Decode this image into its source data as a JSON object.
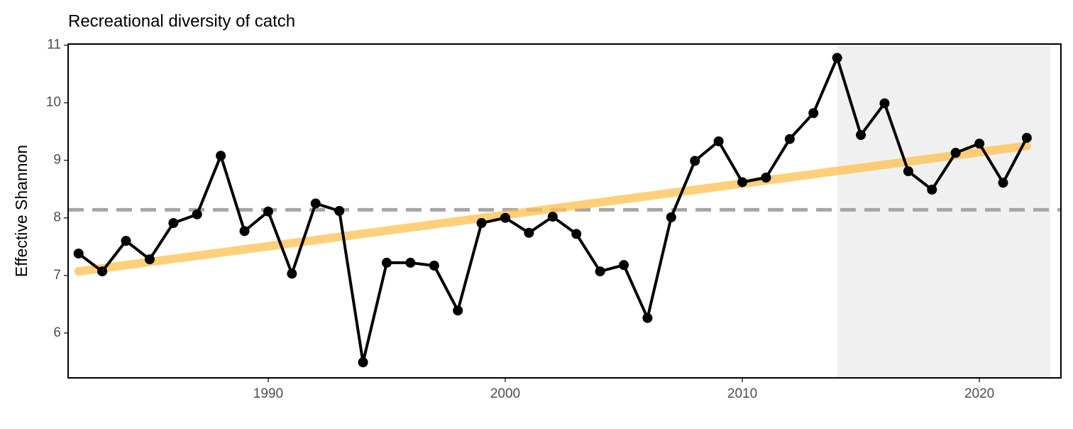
{
  "chart_data": {
    "type": "line",
    "title": "Recreational diversity of catch",
    "ylabel": "Effective Shannon",
    "x": [
      1982,
      1983,
      1984,
      1985,
      1986,
      1987,
      1988,
      1989,
      1990,
      1991,
      1992,
      1993,
      1994,
      1995,
      1996,
      1997,
      1998,
      1999,
      2000,
      2001,
      2002,
      2003,
      2004,
      2005,
      2006,
      2007,
      2008,
      2009,
      2010,
      2011,
      2012,
      2013,
      2014,
      2015,
      2016,
      2017,
      2018,
      2019,
      2020,
      2021,
      2022
    ],
    "values": [
      7.38,
      7.07,
      7.6,
      7.28,
      7.91,
      8.06,
      9.08,
      7.77,
      8.11,
      7.03,
      8.25,
      8.12,
      5.49,
      7.22,
      7.22,
      7.17,
      6.39,
      7.91,
      8.0,
      7.74,
      8.02,
      7.72,
      7.07,
      7.18,
      6.26,
      8.01,
      8.99,
      9.33,
      8.62,
      8.7,
      9.37,
      9.82,
      10.78,
      9.44,
      9.99,
      8.81,
      8.49,
      9.13,
      9.29,
      8.61,
      9.39
    ],
    "color": "#000000",
    "trend": {
      "x": [
        1982,
        2022
      ],
      "values": [
        7.07,
        9.25
      ],
      "color": "#ffc04d"
    },
    "hline": 8.14,
    "hline_color": "#a6a6a6",
    "shade": {
      "x": [
        2014,
        2023
      ],
      "color": "#f0f0f0"
    },
    "xlim": [
      1981.56,
      2023.44
    ],
    "ylim": [
      5.22,
      11.02
    ],
    "xticks": [
      1990,
      2000,
      2010,
      2020
    ],
    "yticks": [
      6,
      7,
      8,
      9,
      10,
      11
    ]
  }
}
